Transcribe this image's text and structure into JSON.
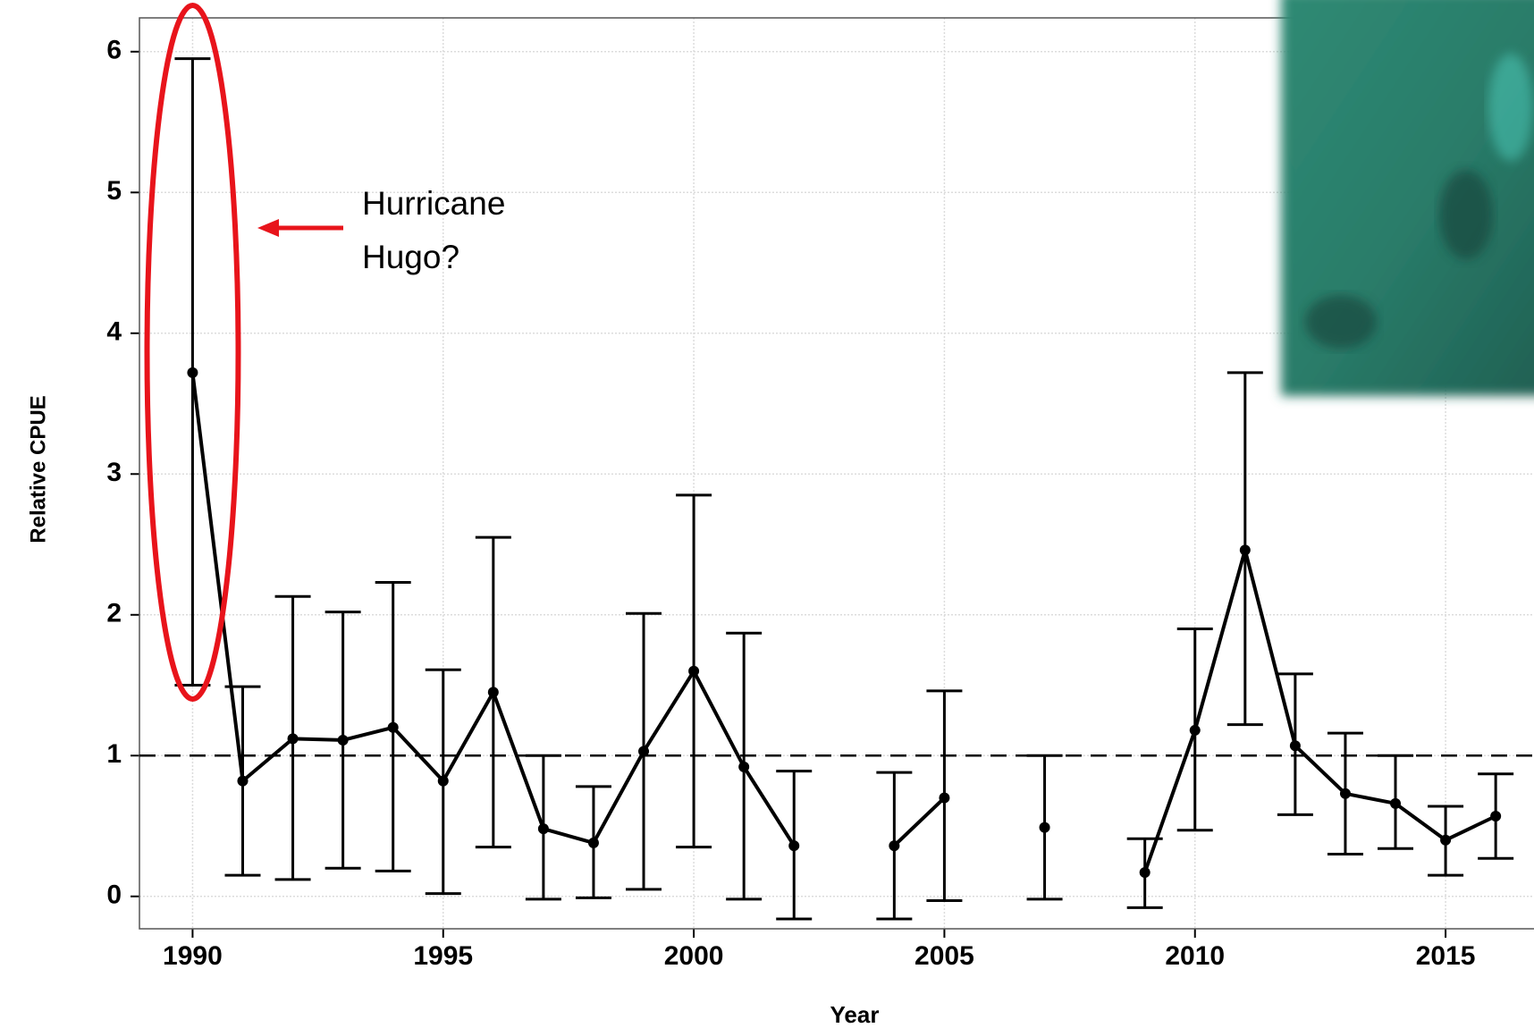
{
  "chart_data": {
    "type": "line",
    "x_label": "Year",
    "y_label": "Relative CPUE",
    "x": [
      1990,
      1991,
      1992,
      1993,
      1994,
      1995,
      1996,
      1997,
      1998,
      1999,
      2000,
      2001,
      2002,
      2003,
      2004,
      2005,
      2006,
      2007,
      2008,
      2009,
      2010,
      2011,
      2012,
      2013,
      2014,
      2015,
      2016
    ],
    "series": [
      {
        "color": "#000000",
        "values": [
          3.72,
          0.82,
          1.12,
          1.11,
          1.2,
          0.82,
          1.45,
          0.48,
          0.38,
          1.03,
          1.6,
          0.92,
          0.36,
          null,
          0.36,
          0.7,
          null,
          0.49,
          null,
          0.17,
          1.18,
          2.46,
          1.07,
          0.73,
          0.66,
          0.4,
          0.57
        ],
        "lower": [
          1.5,
          0.15,
          0.12,
          0.2,
          0.18,
          0.02,
          0.35,
          -0.02,
          -0.01,
          0.05,
          0.35,
          -0.02,
          -0.16,
          null,
          -0.16,
          -0.03,
          null,
          -0.02,
          null,
          -0.08,
          0.47,
          1.22,
          0.58,
          0.3,
          0.34,
          0.15,
          0.27
        ],
        "upper": [
          5.95,
          1.49,
          2.13,
          2.02,
          2.23,
          1.61,
          2.55,
          1.0,
          0.78,
          2.01,
          2.85,
          1.87,
          0.89,
          null,
          0.88,
          1.46,
          null,
          1.0,
          null,
          0.41,
          1.9,
          3.72,
          1.58,
          1.16,
          1.0,
          0.64,
          0.87
        ]
      }
    ],
    "reference_line": 1,
    "xlim": [
      1988.94,
      2016.8
    ],
    "ylim": [
      -0.23,
      6.24
    ],
    "xticks": [
      1990,
      1995,
      2000,
      2005,
      2010,
      2015
    ],
    "yticks": [
      0,
      1,
      2,
      3,
      4,
      5,
      6
    ],
    "grid": true,
    "annotation": [
      "Hurricane",
      "Hugo?"
    ]
  }
}
